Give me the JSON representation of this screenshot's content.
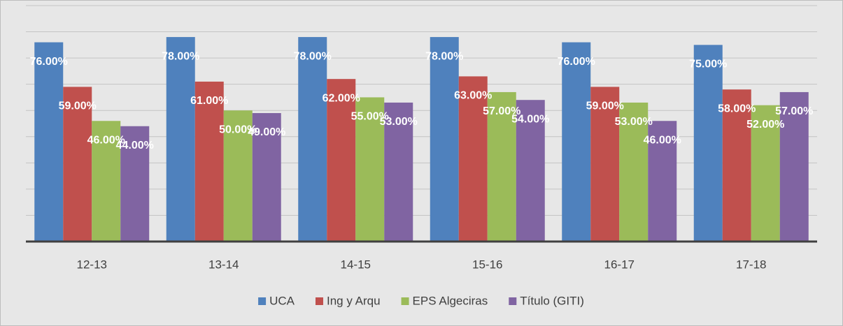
{
  "chart_data": {
    "type": "bar",
    "categories": [
      "12-13",
      "13-14",
      "14-15",
      "15-16",
      "16-17",
      "17-18"
    ],
    "series": [
      {
        "name": "UCA",
        "color": "#4f81bd",
        "values": [
          76,
          78,
          78,
          78,
          76,
          75
        ],
        "value_labels": [
          "76.00%",
          "78.00%",
          "78.00%",
          "78.00%",
          "76.00%",
          "75.00%"
        ]
      },
      {
        "name": "Ing y Arqu",
        "color": "#c0504d",
        "values": [
          59,
          61,
          62,
          63,
          59,
          58
        ],
        "value_labels": [
          "59.00%",
          "61.00%",
          "62.00%",
          "63.00%",
          "59.00%",
          "58.00%"
        ]
      },
      {
        "name": "EPS Algeciras",
        "color": "#9bbb59",
        "values": [
          46,
          50,
          55,
          57,
          53,
          52
        ],
        "value_labels": [
          "46.00%",
          "50.00%",
          "55.00%",
          "57.00%",
          "53.00%",
          "52.00%"
        ]
      },
      {
        "name": "Título (GITI)",
        "color": "#8064a2",
        "values": [
          44,
          49,
          53,
          54,
          46,
          57
        ],
        "value_labels": [
          "44.00%",
          "49.00%",
          "53.00%",
          "54.00%",
          "46.00%",
          "57.00%"
        ]
      }
    ],
    "ylim": [
      0,
      90
    ],
    "yticks": [
      0,
      10,
      20,
      30,
      40,
      50,
      60,
      70,
      80,
      90
    ],
    "grid": true,
    "legend": "bottom"
  }
}
